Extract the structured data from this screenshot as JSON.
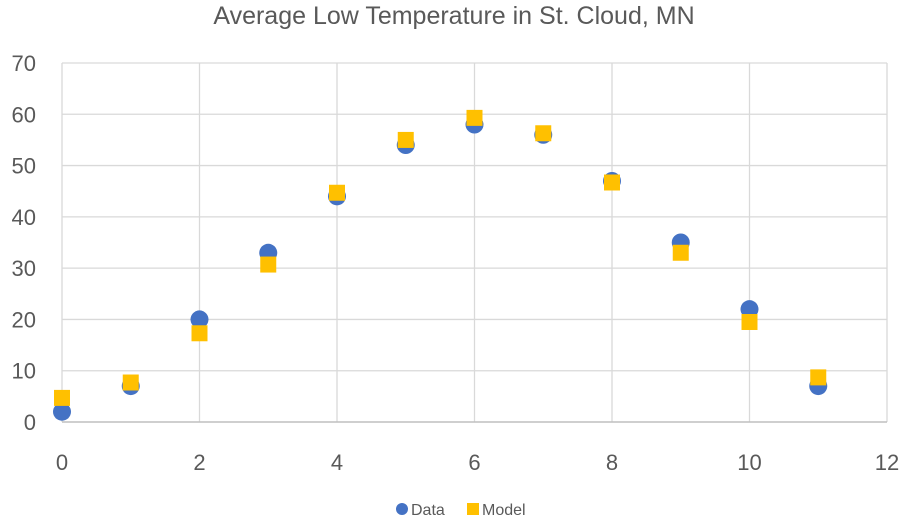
{
  "chart_data": {
    "type": "scatter",
    "title": "Average Low Temperature in St. Cloud, MN",
    "xlabel": "",
    "ylabel": "",
    "xlim": [
      0,
      12
    ],
    "ylim": [
      0,
      70
    ],
    "x_ticks": [
      0,
      2,
      4,
      6,
      8,
      10,
      12
    ],
    "y_ticks": [
      0,
      10,
      20,
      30,
      40,
      50,
      60,
      70
    ],
    "grid": true,
    "legend_position": "bottom",
    "series": [
      {
        "name": "Data",
        "marker": "circle",
        "color": "#4472C4",
        "x": [
          0,
          1,
          2,
          3,
          4,
          5,
          6,
          7,
          8,
          9,
          10,
          11
        ],
        "y": [
          2,
          7,
          20,
          33,
          44,
          54,
          58,
          56,
          47,
          35,
          22,
          7
        ]
      },
      {
        "name": "Model",
        "marker": "square",
        "color": "#FFC000",
        "x": [
          0,
          1,
          2,
          3,
          4,
          5,
          6,
          7,
          8,
          9,
          10,
          11
        ],
        "y": [
          4.7,
          7.7,
          17.3,
          30.7,
          44.7,
          55.0,
          59.3,
          56.3,
          46.7,
          33.0,
          19.5,
          8.7
        ]
      }
    ]
  }
}
